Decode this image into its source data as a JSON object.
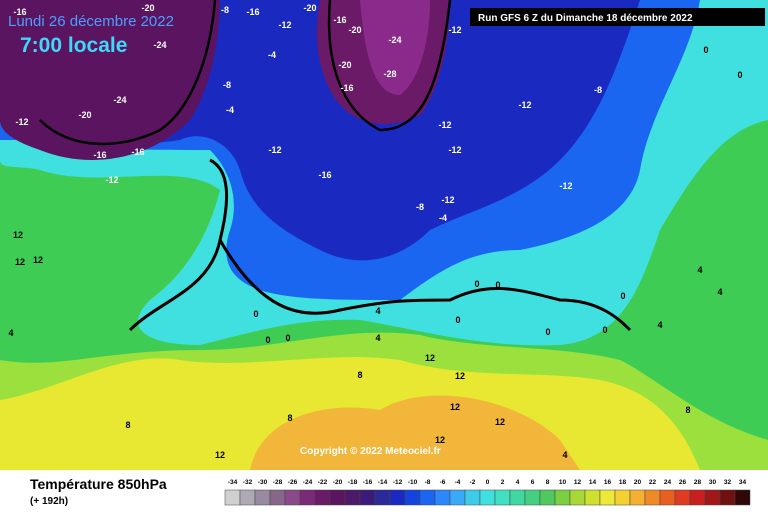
{
  "header": {
    "date": "Lundi 26 décembre 2022",
    "time": "7:00 locale",
    "run": "Run GFS 6 Z du Dimanche 18 décembre 2022"
  },
  "copyright": "Copyright © 2022 Meteociel.fr",
  "footer": {
    "title": "Température 850hPa",
    "subtitle": "(+ 192h)"
  },
  "legend": {
    "ticks": [
      -34,
      -32,
      -30,
      -28,
      -26,
      -24,
      -22,
      -20,
      -18,
      -16,
      -14,
      -12,
      -10,
      -8,
      -6,
      -4,
      -2,
      0,
      2,
      4,
      6,
      8,
      10,
      12,
      14,
      16,
      18,
      20,
      22,
      24,
      26,
      28,
      30,
      32,
      34
    ],
    "colors": [
      "#d0d0d0",
      "#b0a8b4",
      "#988aa0",
      "#88668c",
      "#8a4a8a",
      "#7a2a78",
      "#6a1a66",
      "#5a1460",
      "#4c1a66",
      "#3a1a7a",
      "#2a2a9a",
      "#1a2ac0",
      "#1444e0",
      "#1a66f0",
      "#2a88f8",
      "#3aaaf8",
      "#3ccce8",
      "#40e0e0",
      "#40e0c0",
      "#40d8a0",
      "#44d080",
      "#50c860",
      "#7ad040",
      "#a8d838",
      "#d0e030",
      "#eee838",
      "#f4d030",
      "#f4b030",
      "#f08a28",
      "#e86020",
      "#e03a20",
      "#c82020",
      "#a01818",
      "#701010",
      "#300808"
    ]
  },
  "map_labels": [
    -16,
    -20,
    -16,
    -20,
    -20,
    -16,
    -24,
    -12,
    -12,
    -8,
    -4,
    -24,
    -28,
    -20,
    -16,
    -8,
    -4,
    -12,
    -20,
    -24,
    -16,
    -16,
    -12,
    -12,
    -16,
    -12,
    -12,
    -12,
    -8,
    -12,
    -12,
    -8,
    -4,
    0,
    0,
    0,
    0,
    0,
    4,
    4,
    0,
    0,
    0,
    0,
    8,
    12,
    12,
    12,
    12,
    12,
    12,
    8,
    8,
    4,
    4,
    4,
    4,
    4,
    0,
    12,
    12,
    12,
    8,
    0
  ]
}
